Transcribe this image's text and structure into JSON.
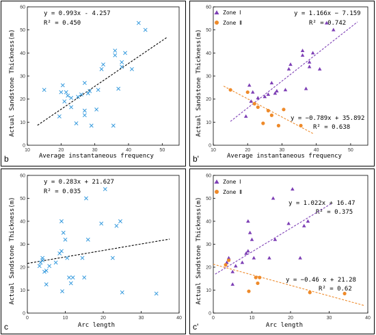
{
  "colors": {
    "cross": "#3399dd",
    "zone1": "#7d3fb5",
    "zone2": "#ee8a2a",
    "trend": "#000000"
  },
  "chart_data": [
    {
      "type": "scatter",
      "panel_label": "b",
      "xlabel": "Average instantaneous frequency",
      "ylabel": "Actual Sandstone Thickness(m)",
      "xlim": [
        10,
        55
      ],
      "ylim": [
        0,
        60
      ],
      "xticks": [
        10,
        20,
        30,
        40,
        50
      ],
      "yticks": [
        0,
        10,
        20,
        30,
        40,
        50,
        60
      ],
      "annotations": [
        "y = 0.993x - 4.257",
        "R² = 0.450"
      ],
      "series": [
        {
          "marker": "x",
          "points": [
            [
              15,
              24
            ],
            [
              20,
              23
            ],
            [
              19.5,
              12.5
            ],
            [
              21,
              19
            ],
            [
              20.5,
              26
            ],
            [
              21.5,
              23
            ],
            [
              22,
              21.5
            ],
            [
              23,
              16.5
            ],
            [
              23,
              20.5
            ],
            [
              24.5,
              9.5
            ],
            [
              25,
              21
            ],
            [
              26,
              22
            ],
            [
              27,
              13
            ],
            [
              27,
              15
            ],
            [
              27,
              27
            ],
            [
              28,
              22.5
            ],
            [
              28.5,
              23.5
            ],
            [
              29,
              8.5
            ],
            [
              30.5,
              15.5
            ],
            [
              31,
              24
            ],
            [
              32,
              33
            ],
            [
              32.5,
              35
            ],
            [
              35.5,
              8.5
            ],
            [
              36,
              41
            ],
            [
              36,
              39
            ],
            [
              37,
              24.5
            ],
            [
              38,
              34
            ],
            [
              38,
              36
            ],
            [
              39,
              40
            ],
            [
              41,
              33
            ],
            [
              43,
              53
            ],
            [
              45,
              50
            ]
          ]
        }
      ],
      "trendlines": [
        {
          "x": [
            13,
            51.5
          ],
          "y": [
            8.65,
            46.88
          ]
        }
      ]
    },
    {
      "type": "scatter",
      "panel_label": "b'",
      "xlabel": "Average instantaneous frequency",
      "ylabel": "Actual Sandstone Thickness(m)",
      "xlim": [
        10,
        55
      ],
      "ylim": [
        0,
        60
      ],
      "xticks": [
        10,
        20,
        30,
        40,
        50
      ],
      "yticks": [
        0,
        10,
        20,
        30,
        40,
        50,
        60
      ],
      "legend": [
        "Zone Ⅰ",
        "Zone Ⅱ"
      ],
      "annotations": [
        "y = 1.166x − 7.159",
        "R² = 0.742",
        "y = −0.789x + 35.892",
        "R² = 0.638"
      ],
      "series": [
        {
          "name": "Zone Ⅰ",
          "marker": "triangle",
          "points": [
            [
              19.5,
              12.5
            ],
            [
              20.5,
              26
            ],
            [
              21,
              19
            ],
            [
              21.5,
              23
            ],
            [
              23,
              20.5
            ],
            [
              25,
              21
            ],
            [
              26,
              22
            ],
            [
              27,
              27
            ],
            [
              28,
              22.5
            ],
            [
              28.5,
              23.5
            ],
            [
              31,
              24
            ],
            [
              32,
              33
            ],
            [
              32.5,
              35
            ],
            [
              36,
              41
            ],
            [
              36,
              39
            ],
            [
              37,
              24.5
            ],
            [
              38,
              34
            ],
            [
              38,
              36
            ],
            [
              39,
              40
            ],
            [
              41,
              33
            ],
            [
              43,
              53
            ],
            [
              45,
              50
            ]
          ]
        },
        {
          "name": "Zone Ⅱ",
          "marker": "circle",
          "points": [
            [
              15,
              24
            ],
            [
              20,
              23
            ],
            [
              22,
              18
            ],
            [
              23,
              16.5
            ],
            [
              24.5,
              9.5
            ],
            [
              26,
              15
            ],
            [
              27,
              13
            ],
            [
              29,
              8.5
            ],
            [
              30.5,
              15.5
            ],
            [
              35.5,
              8.5
            ]
          ]
        }
      ],
      "trendlines": [
        {
          "series": "Zone Ⅰ",
          "x": [
            15,
            52
          ],
          "y": [
            10.33,
            53.47
          ]
        },
        {
          "series": "Zone Ⅱ",
          "x": [
            13,
            39
          ],
          "y": [
            25.64,
            5.12
          ]
        }
      ]
    },
    {
      "type": "scatter",
      "panel_label": "c",
      "xlabel": "Arc length",
      "ylabel": "Actual Sandstone Thickness(m)",
      "xlim": [
        0,
        40
      ],
      "ylim": [
        0,
        60
      ],
      "xticks": [
        0,
        10,
        20,
        30,
        40
      ],
      "yticks": [
        0,
        10,
        20,
        30,
        40,
        50,
        60
      ],
      "annotations": [
        "y = 0.283x + 21.627",
        "R² = 0.035"
      ],
      "series": [
        {
          "marker": "x",
          "points": [
            [
              3.2,
              20.5
            ],
            [
              3.5,
              22
            ],
            [
              4,
              23
            ],
            [
              4,
              24
            ],
            [
              4.5,
              18
            ],
            [
              5,
              18.5
            ],
            [
              5,
              12.5
            ],
            [
              5.8,
              20.5
            ],
            [
              7.5,
              22
            ],
            [
              8.5,
              26
            ],
            [
              9,
              27
            ],
            [
              9,
              40
            ],
            [
              9.2,
              9.5
            ],
            [
              9.5,
              35
            ],
            [
              10,
              32
            ],
            [
              10.5,
              24
            ],
            [
              11,
              15.5
            ],
            [
              11.5,
              13
            ],
            [
              12,
              15.5
            ],
            [
              14.5,
              24
            ],
            [
              15,
              15.5
            ],
            [
              15.5,
              50
            ],
            [
              16,
              32
            ],
            [
              19.5,
              39
            ],
            [
              20.5,
              54
            ],
            [
              22.5,
              24
            ],
            [
              23.5,
              38
            ],
            [
              24.5,
              40
            ],
            [
              25,
              9
            ],
            [
              34,
              8.5
            ]
          ]
        }
      ],
      "trendlines": [
        {
          "x": [
            0,
            37.5
          ],
          "y": [
            21.63,
            32.24
          ]
        }
      ]
    },
    {
      "type": "scatter",
      "panel_label": "c'",
      "xlabel": "Arc length",
      "ylabel": "Actual Sandstone Thickness(m)",
      "xlim": [
        0,
        40
      ],
      "ylim": [
        0,
        60
      ],
      "xticks": [
        0,
        10,
        20,
        30,
        40
      ],
      "yticks": [
        0,
        10,
        20,
        30,
        40,
        50,
        60
      ],
      "legend": [
        "Zone Ⅰ",
        "Zone Ⅱ"
      ],
      "annotations": [
        "y = 1.022x + 16.47",
        "R² = 0.375",
        "y = −0.46 x + 21.28",
        "R² = 0.62"
      ],
      "series": [
        {
          "name": "Zone Ⅰ",
          "marker": "triangle",
          "points": [
            [
              3.5,
              22
            ],
            [
              4,
              24
            ],
            [
              5,
              18
            ],
            [
              5,
              12.5
            ],
            [
              5.8,
              20.5
            ],
            [
              7.5,
              22
            ],
            [
              8.5,
              26
            ],
            [
              9,
              27
            ],
            [
              9,
              40
            ],
            [
              9.5,
              35
            ],
            [
              10,
              32
            ],
            [
              10.5,
              24
            ],
            [
              14.5,
              24
            ],
            [
              15.5,
              50
            ],
            [
              16,
              32
            ],
            [
              19.5,
              39
            ],
            [
              20.5,
              54
            ],
            [
              22.5,
              24
            ],
            [
              23.5,
              38
            ],
            [
              24.5,
              40
            ]
          ]
        },
        {
          "name": "Zone Ⅱ",
          "marker": "circle",
          "points": [
            [
              3.2,
              21
            ],
            [
              4,
              23
            ],
            [
              9.2,
              9.5
            ],
            [
              11,
              15.5
            ],
            [
              11.5,
              13
            ],
            [
              12,
              15.5
            ],
            [
              25,
              9
            ],
            [
              34,
              8.5
            ]
          ]
        }
      ],
      "trendlines": [
        {
          "series": "Zone Ⅰ",
          "x": [
            0.5,
            30.5
          ],
          "y": [
            16.98,
            47.64
          ]
        },
        {
          "series": "Zone Ⅱ",
          "x": [
            0,
            39
          ],
          "y": [
            21.28,
            3.34
          ]
        }
      ]
    }
  ]
}
